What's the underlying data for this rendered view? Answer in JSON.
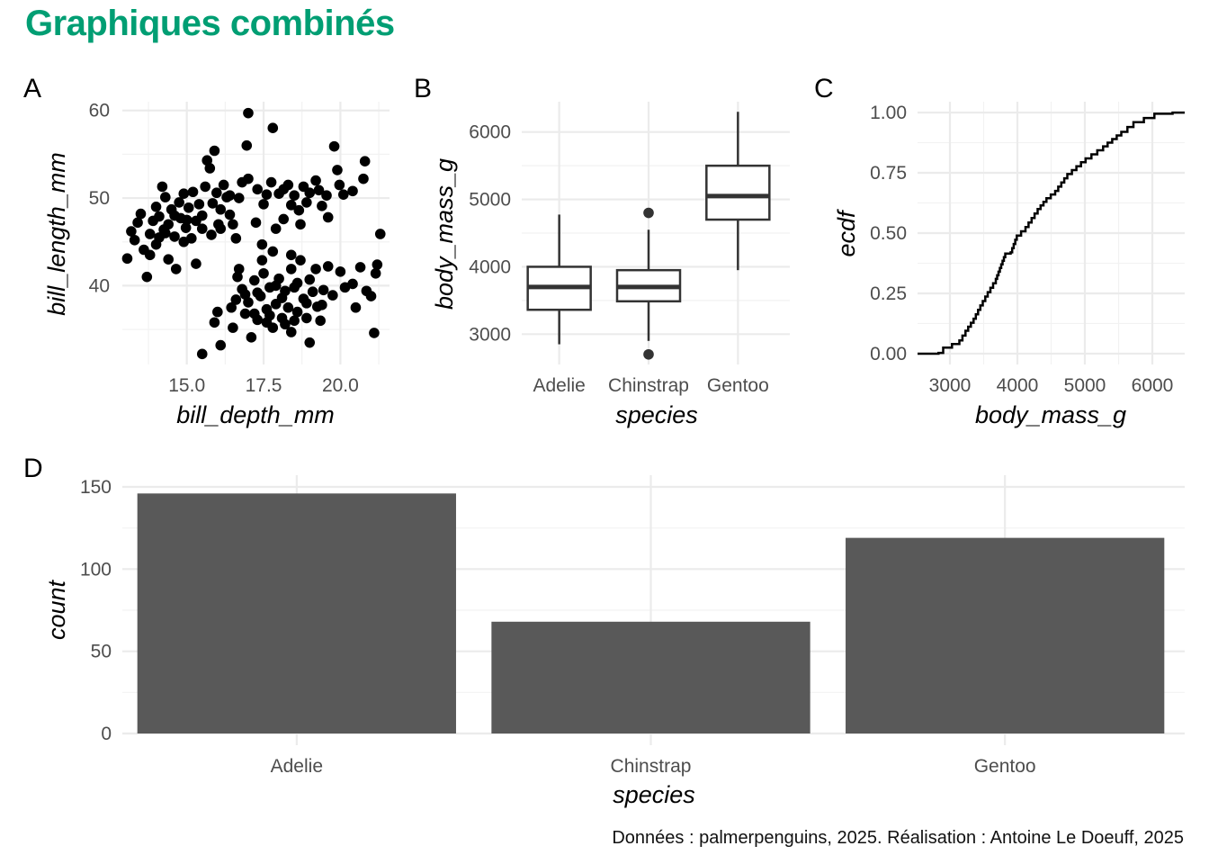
{
  "title": "Graphiques combinés",
  "title_color": "#009e73",
  "caption": "Données : palmerpenguins, 2025. Réalisation : Antoine Le Doeuff, 2025",
  "chart_data": [
    {
      "tag": "A",
      "type": "scatter",
      "xlabel": "bill_depth_mm",
      "ylabel": "bill_length_mm",
      "xlim": [
        12.9,
        21.6
      ],
      "ylim": [
        31.0,
        61.0
      ],
      "xticks": [
        15.0,
        17.5,
        20.0
      ],
      "xtick_labels": [
        "15.0",
        "17.5",
        "20.0"
      ],
      "yticks": [
        40,
        50,
        60
      ],
      "ytick_labels": [
        "40",
        "50",
        "60"
      ],
      "point_color": "#000000",
      "grid": true,
      "points": [
        [
          13.06,
          43.1
        ],
        [
          13.19,
          46.2
        ],
        [
          13.3,
          45.2
        ],
        [
          13.4,
          47.2
        ],
        [
          13.5,
          48.2
        ],
        [
          13.6,
          44.1
        ],
        [
          13.7,
          41.0
        ],
        [
          13.8,
          45.9
        ],
        [
          13.9,
          47.4
        ],
        [
          14.0,
          49.0
        ],
        [
          14.0,
          44.7
        ],
        [
          14.1,
          47.9
        ],
        [
          14.2,
          51.3
        ],
        [
          14.25,
          46.4
        ],
        [
          14.3,
          50.1
        ],
        [
          14.4,
          47.0
        ],
        [
          14.5,
          48.7
        ],
        [
          14.6,
          45.6
        ],
        [
          14.65,
          41.9
        ],
        [
          14.75,
          49.5
        ],
        [
          14.8,
          47.7
        ],
        [
          14.9,
          50.5
        ],
        [
          14.97,
          46.6
        ],
        [
          15.06,
          48.9
        ],
        [
          15.15,
          45.4
        ],
        [
          15.2,
          50.7
        ],
        [
          15.3,
          47.4
        ],
        [
          15.4,
          49.3
        ],
        [
          15.5,
          46.5
        ],
        [
          15.6,
          51.3
        ],
        [
          15.66,
          54.3
        ],
        [
          15.75,
          53.4
        ],
        [
          15.84,
          49.4
        ],
        [
          15.9,
          55.4
        ],
        [
          15.97,
          50.6
        ],
        [
          16.03,
          47.0
        ],
        [
          16.1,
          48.7
        ],
        [
          16.2,
          51.5
        ],
        [
          16.3,
          50.1
        ],
        [
          16.4,
          48.1
        ],
        [
          16.5,
          47.0
        ],
        [
          16.6,
          45.4
        ],
        [
          16.7,
          50.0
        ],
        [
          16.8,
          51.8
        ],
        [
          15.8,
          45.8
        ],
        [
          15.3,
          42.5
        ],
        [
          14.3,
          46.0
        ],
        [
          14.6,
          48.0
        ],
        [
          14.1,
          45.5
        ],
        [
          13.8,
          43.5
        ],
        [
          14.4,
          43.0
        ],
        [
          15.0,
          47.5
        ],
        [
          15.5,
          48.0
        ],
        [
          14.9,
          45.0
        ],
        [
          16.1,
          46.5
        ],
        [
          17.0,
          59.7
        ],
        [
          17.8,
          58.0
        ],
        [
          16.95,
          56.0
        ],
        [
          16.4,
          50.3
        ],
        [
          17.0,
          52.2
        ],
        [
          17.3,
          51.0
        ],
        [
          17.5,
          49.3
        ],
        [
          17.75,
          51.8
        ],
        [
          18.0,
          50.5
        ],
        [
          18.15,
          51.0
        ],
        [
          18.3,
          51.5
        ],
        [
          18.5,
          50.3
        ],
        [
          18.65,
          48.6
        ],
        [
          18.8,
          51.3
        ],
        [
          19.0,
          50.6
        ],
        [
          19.2,
          52.0
        ],
        [
          19.4,
          49.1
        ],
        [
          19.55,
          50.3
        ],
        [
          19.8,
          55.9
        ],
        [
          19.9,
          53.2
        ],
        [
          19.97,
          51.5
        ],
        [
          20.1,
          50.4
        ],
        [
          20.4,
          50.8
        ],
        [
          20.75,
          52.2
        ],
        [
          20.8,
          54.2
        ],
        [
          18.7,
          47.0
        ],
        [
          17.9,
          46.5
        ],
        [
          17.25,
          47.2
        ],
        [
          17.45,
          44.7
        ],
        [
          18.15,
          47.6
        ],
        [
          19.6,
          47.8
        ],
        [
          21.3,
          45.9
        ],
        [
          18.9,
          49.5
        ],
        [
          19.3,
          50.9
        ],
        [
          18.4,
          49.2
        ],
        [
          17.6,
          50.4
        ],
        [
          15.5,
          32.2
        ],
        [
          16.1,
          33.2
        ],
        [
          15.9,
          35.8
        ],
        [
          16.0,
          37.0
        ],
        [
          16.5,
          35.2
        ],
        [
          16.6,
          38.4
        ],
        [
          16.65,
          41.0
        ],
        [
          16.8,
          39.6
        ],
        [
          16.9,
          36.8
        ],
        [
          17.0,
          38.1
        ],
        [
          17.1,
          34.1
        ],
        [
          17.2,
          40.6
        ],
        [
          17.3,
          36.1
        ],
        [
          17.4,
          38.8
        ],
        [
          17.5,
          41.4
        ],
        [
          17.6,
          37.3
        ],
        [
          17.7,
          39.8
        ],
        [
          17.8,
          35.2
        ],
        [
          17.9,
          37.9
        ],
        [
          18.0,
          40.8
        ],
        [
          18.1,
          36.3
        ],
        [
          18.2,
          39.4
        ],
        [
          18.3,
          37.5
        ],
        [
          18.4,
          41.9
        ],
        [
          18.4,
          34.7
        ],
        [
          18.5,
          39.8
        ],
        [
          18.6,
          37.0
        ],
        [
          18.7,
          42.9
        ],
        [
          18.8,
          38.5
        ],
        [
          18.9,
          36.3
        ],
        [
          19.0,
          40.7
        ],
        [
          19.1,
          39.3
        ],
        [
          19.2,
          41.9
        ],
        [
          19.25,
          37.6
        ],
        [
          19.35,
          36.0
        ],
        [
          19.45,
          39.5
        ],
        [
          19.0,
          33.5
        ],
        [
          19.6,
          42.2
        ],
        [
          19.75,
          38.9
        ],
        [
          20.0,
          41.6
        ],
        [
          20.15,
          39.8
        ],
        [
          20.4,
          40.2
        ],
        [
          20.5,
          37.5
        ],
        [
          20.65,
          42.1
        ],
        [
          20.85,
          39.4
        ],
        [
          21.0,
          38.8
        ],
        [
          21.15,
          41.4
        ],
        [
          21.1,
          34.6
        ],
        [
          21.2,
          42.4
        ],
        [
          16.45,
          37.5
        ],
        [
          16.7,
          41.9
        ],
        [
          17.45,
          42.9
        ],
        [
          17.8,
          43.9
        ],
        [
          18.4,
          43.5
        ],
        [
          17.2,
          36.8
        ],
        [
          17.7,
          36.6
        ],
        [
          18.1,
          38.6
        ],
        [
          18.6,
          40.3
        ],
        [
          17.3,
          39.2
        ],
        [
          18.9,
          38.0
        ],
        [
          18.2,
          35.6
        ],
        [
          17.9,
          40.0
        ],
        [
          19.4,
          37.8
        ],
        [
          18.5,
          36.0
        ],
        [
          16.9,
          39.0
        ],
        [
          17.6,
          35.8
        ]
      ]
    },
    {
      "tag": "B",
      "type": "box",
      "xlabel": "species",
      "ylabel": "body_mass_g",
      "categories": [
        "Adelie",
        "Chinstrap",
        "Gentoo"
      ],
      "ylim": [
        2550,
        6450
      ],
      "yticks": [
        3000,
        4000,
        5000,
        6000
      ],
      "ytick_labels": [
        "3000",
        "4000",
        "5000",
        "6000"
      ],
      "grid": true,
      "boxes": [
        {
          "whisker_low": 2850,
          "q1": 3362,
          "median": 3700,
          "q3": 4000,
          "whisker_high": 4775,
          "outliers": []
        },
        {
          "whisker_low": 2900,
          "q1": 3488,
          "median": 3700,
          "q3": 3950,
          "whisker_high": 4550,
          "outliers": [
            2700,
            4800
          ]
        },
        {
          "whisker_low": 3950,
          "q1": 4700,
          "median": 5050,
          "q3": 5500,
          "whisker_high": 6300,
          "outliers": []
        }
      ],
      "box_stroke": "#333333"
    },
    {
      "tag": "C",
      "type": "line",
      "subtype": "ecdf-step",
      "xlabel": "body_mass_g",
      "ylabel": "ecdf",
      "xlim": [
        2520,
        6480
      ],
      "ylim": [
        0,
        1
      ],
      "xticks": [
        3000,
        4000,
        5000,
        6000
      ],
      "xtick_labels": [
        "3000",
        "4000",
        "5000",
        "6000"
      ],
      "yticks": [
        0,
        0.25,
        0.5,
        0.75,
        1.0
      ],
      "ytick_labels": [
        "0.00",
        "0.25",
        "0.50",
        "0.75",
        "1.00"
      ],
      "grid": true,
      "points": [
        [
          2520,
          0.0
        ],
        [
          2830,
          0.003
        ],
        [
          2900,
          0.025
        ],
        [
          3030,
          0.04
        ],
        [
          3140,
          0.055
        ],
        [
          3230,
          0.095
        ],
        [
          3350,
          0.145
        ],
        [
          3450,
          0.2
        ],
        [
          3560,
          0.255
        ],
        [
          3680,
          0.31
        ],
        [
          3760,
          0.37
        ],
        [
          3820,
          0.415
        ],
        [
          3900,
          0.42
        ],
        [
          3990,
          0.49
        ],
        [
          4120,
          0.525
        ],
        [
          4300,
          0.6
        ],
        [
          4430,
          0.645
        ],
        [
          4560,
          0.675
        ],
        [
          4740,
          0.745
        ],
        [
          5010,
          0.81
        ],
        [
          5270,
          0.86
        ],
        [
          5540,
          0.92
        ],
        [
          5720,
          0.96
        ],
        [
          6030,
          0.995
        ],
        [
          6300,
          1.0
        ],
        [
          6480,
          1.0
        ]
      ]
    },
    {
      "tag": "D",
      "type": "bar",
      "xlabel": "species",
      "ylabel": "count",
      "categories": [
        "Adelie",
        "Chinstrap",
        "Gentoo"
      ],
      "values": [
        146,
        68,
        119
      ],
      "ylim": [
        0,
        150
      ],
      "yticks": [
        0,
        50,
        100,
        150
      ],
      "ytick_labels": [
        "0",
        "50",
        "100",
        "150"
      ],
      "bar_color": "#595959",
      "grid": true
    }
  ]
}
